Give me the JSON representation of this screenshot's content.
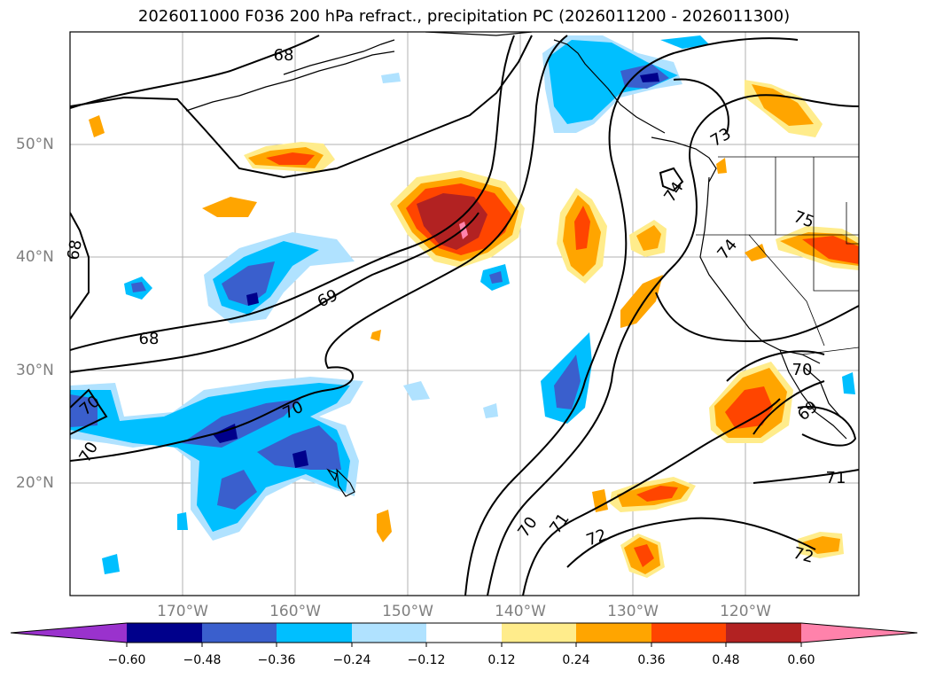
{
  "title": "2026011000 F036 200 hPa refract., precipitation PC (2026011200 - 2026011300)",
  "map": {
    "lon_labels": [
      "170°W",
      "160°W",
      "150°W",
      "140°W",
      "130°W",
      "120°W"
    ],
    "lat_labels": [
      "50°N",
      "40°N",
      "30°N",
      "20°N"
    ],
    "contour_labels": [
      "68",
      "68",
      "68",
      "69",
      "70",
      "70",
      "70",
      "70",
      "71",
      "72",
      "73",
      "74",
      "74",
      "75",
      "70",
      "69",
      "71",
      "72"
    ]
  },
  "colorbar": {
    "ticks": [
      "−0.60",
      "−0.48",
      "−0.36",
      "−0.24",
      "−0.12",
      "0.12",
      "0.24",
      "0.36",
      "0.48",
      "0.60"
    ],
    "colors": [
      "#9a32cd",
      "#00008b",
      "#3a5fcd",
      "#00bfff",
      "#b0e2ff",
      "#ffffff",
      "#ffec8b",
      "#ffa500",
      "#ff4500",
      "#b22222",
      "#ff82ab"
    ]
  }
}
